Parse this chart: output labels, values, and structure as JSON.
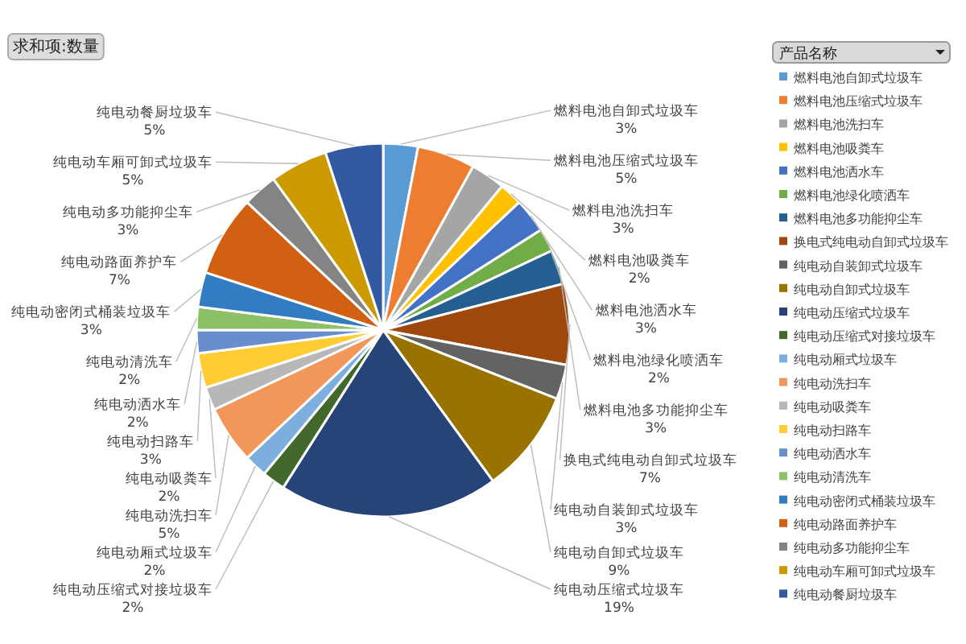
{
  "chart_data": {
    "type": "pie",
    "annotations": [
      "求和项:数量"
    ],
    "legend_title": "产品名称",
    "legend": "right",
    "categories": [
      "燃料电池自卸式垃圾车",
      "燃料电池压缩式垃圾车",
      "燃料电池洗扫车",
      "燃料电池吸粪车",
      "燃料电池洒水车",
      "燃料电池绿化喷洒车",
      "燃料电池多功能抑尘车",
      "换电式纯电动自卸式垃圾车",
      "纯电动自装卸式垃圾车",
      "纯电动自卸式垃圾车",
      "纯电动压缩式垃圾车",
      "纯电动压缩式对接垃圾车",
      "纯电动厢式垃圾车",
      "纯电动洗扫车",
      "纯电动吸粪车",
      "纯电动扫路车",
      "纯电动洒水车",
      "纯电动清洗车",
      "纯电动密闭式桶装垃圾车",
      "纯电动路面养护车",
      "纯电动多功能抑尘车",
      "纯电动车厢可卸式垃圾车",
      "纯电动餐厨垃圾车"
    ],
    "values": [
      3,
      5,
      3,
      2,
      3,
      2,
      3,
      7,
      3,
      9,
      19,
      2,
      2,
      5,
      2,
      3,
      2,
      2,
      3,
      7,
      3,
      5,
      5
    ],
    "colors": [
      "#5b9bd5",
      "#ed7d31",
      "#a5a5a5",
      "#ffc000",
      "#4472c4",
      "#70ad47",
      "#255e91",
      "#9e480e",
      "#636363",
      "#997300",
      "#264478",
      "#43682b",
      "#7cafdd",
      "#f1975a",
      "#b7b7b7",
      "#ffcd33",
      "#698ed0",
      "#8cc168",
      "#327dc2",
      "#d26012",
      "#848484",
      "#cc9a00",
      "#335aa1"
    ],
    "value_labels": [
      "3%",
      "5%",
      "3%",
      "2%",
      "3%",
      "2%",
      "3%",
      "7%",
      "3%",
      "9%",
      "19%",
      "2%",
      "2%",
      "5%",
      "2%",
      "3%",
      "2%",
      "2%",
      "3%",
      "7%",
      "3%",
      "5%",
      "5%"
    ]
  }
}
